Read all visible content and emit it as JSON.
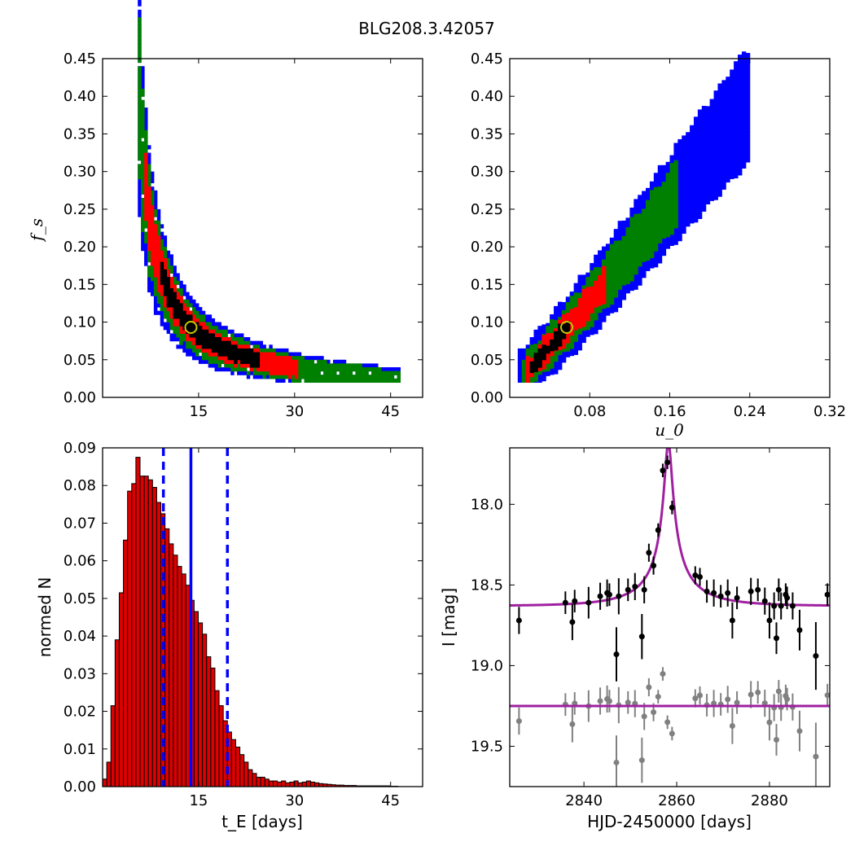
{
  "title": "BLG208.3.42057",
  "colors": {
    "blue": "#0000ff",
    "green": "#008000",
    "red": "#ff0000",
    "black": "#000000",
    "marker_yellow": "#c8c800",
    "model": "#a020a0",
    "grey": "#808080",
    "hist_bar": "#dd0000"
  },
  "chart_data": [
    {
      "id": "fs_vs_tE",
      "type": "heatmap",
      "ylabel": "f_s",
      "xlim": [
        0,
        50
      ],
      "ylim": [
        0,
        0.45
      ],
      "xticks": [
        "15",
        "30",
        "45"
      ],
      "xtick_values": [
        15,
        30,
        45
      ],
      "yticks": [
        "0.00",
        "0.05",
        "0.10",
        "0.15",
        "0.20",
        "0.25",
        "0.30",
        "0.35",
        "0.40",
        "0.45"
      ],
      "ytick_values": [
        0,
        0.05,
        0.1,
        0.15,
        0.2,
        0.25,
        0.3,
        0.35,
        0.4,
        0.45
      ],
      "ridge": {
        "x": [
          5.5,
          6,
          7,
          8,
          9,
          10,
          11,
          12,
          13,
          14,
          15,
          16,
          17,
          18,
          20,
          22,
          24,
          26,
          28,
          30,
          32,
          34,
          36,
          38,
          40,
          42,
          44,
          46
        ],
        "y": [
          0.4,
          0.32,
          0.24,
          0.195,
          0.165,
          0.142,
          0.124,
          0.11,
          0.099,
          0.09,
          0.083,
          0.077,
          0.072,
          0.068,
          0.061,
          0.055,
          0.05,
          0.046,
          0.042,
          0.039,
          0.036,
          0.034,
          0.032,
          0.03,
          0.029,
          0.027,
          0.026,
          0.025
        ]
      },
      "best_fit": {
        "x": 13.8,
        "y": 0.093
      }
    },
    {
      "id": "fs_vs_u0",
      "type": "heatmap",
      "xlabel": "u_0",
      "xlim": [
        0,
        0.32
      ],
      "ylim": [
        0,
        0.45
      ],
      "xticks": [
        "0.08",
        "0.16",
        "0.24",
        "0.32"
      ],
      "xtick_values": [
        0.08,
        0.16,
        0.24,
        0.32
      ],
      "yticks": [
        "0.00",
        "0.05",
        "0.10",
        "0.15",
        "0.20",
        "0.25",
        "0.30",
        "0.35",
        "0.40",
        "0.45"
      ],
      "ytick_values": [
        0,
        0.05,
        0.1,
        0.15,
        0.2,
        0.25,
        0.3,
        0.35,
        0.4,
        0.45
      ],
      "ridge": {
        "x": [
          0.01,
          0.03,
          0.06,
          0.09,
          0.12,
          0.15,
          0.18,
          0.21,
          0.235
        ],
        "y": [
          0.025,
          0.055,
          0.098,
          0.145,
          0.195,
          0.245,
          0.295,
          0.345,
          0.385
        ]
      },
      "best_fit": {
        "x": 0.057,
        "y": 0.093
      }
    },
    {
      "id": "tE_histogram",
      "type": "bar",
      "xlabel": "t_E [days]",
      "ylabel": "normed N",
      "xlim": [
        0,
        50
      ],
      "ylim": [
        0,
        0.09
      ],
      "xticks": [
        "15",
        "30",
        "45"
      ],
      "xtick_values": [
        15,
        30,
        45
      ],
      "yticks": [
        "0.00",
        "0.01",
        "0.02",
        "0.03",
        "0.04",
        "0.05",
        "0.06",
        "0.07",
        "0.08",
        "0.09"
      ],
      "ytick_values": [
        0,
        0.01,
        0.02,
        0.03,
        0.04,
        0.05,
        0.06,
        0.07,
        0.08,
        0.09
      ],
      "bin_start": 0,
      "bin_width": 0.65,
      "values": [
        0.002,
        0.0065,
        0.0215,
        0.039,
        0.0515,
        0.0655,
        0.0785,
        0.0805,
        0.0875,
        0.0825,
        0.0825,
        0.0815,
        0.0795,
        0.0755,
        0.0725,
        0.0685,
        0.0645,
        0.0615,
        0.0585,
        0.0565,
        0.0535,
        0.0495,
        0.0465,
        0.0435,
        0.0405,
        0.0345,
        0.0315,
        0.0255,
        0.0215,
        0.0175,
        0.0145,
        0.0125,
        0.0105,
        0.0085,
        0.0065,
        0.0045,
        0.0035,
        0.0025,
        0.0025,
        0.002,
        0.0015,
        0.0015,
        0.0012,
        0.0015,
        0.001,
        0.0012,
        0.0015,
        0.001,
        0.0012,
        0.0015,
        0.0012,
        0.001,
        0.0008,
        0.0007,
        0.0006,
        0.0005,
        0.0004,
        0.0004,
        0.0003,
        0.0003,
        0.0003,
        0.0002,
        0.0002,
        0.0002,
        0.0002,
        0.0002,
        0.0002,
        0.0002,
        0.0002,
        0.0001,
        0.0001
      ],
      "median": 13.8,
      "lower": 9.5,
      "upper": 19.5
    },
    {
      "id": "light_curve",
      "type": "scatter",
      "xlabel": "HJD-2450000 [days]",
      "ylabel": "I [mag]",
      "xlim": [
        2824,
        2893
      ],
      "ylim": [
        19.75,
        17.65
      ],
      "xticks": [
        "2840",
        "2860",
        "2880"
      ],
      "xtick_values": [
        2840,
        2860,
        2880
      ],
      "yticks": [
        "18.0",
        "18.5",
        "19.0",
        "19.5"
      ],
      "ytick_values": [
        18.0,
        18.5,
        19.0,
        19.5
      ],
      "model": {
        "t0": 2858.2,
        "u0": 0.057,
        "tE": 13.8,
        "fs": 0.093,
        "m_base": 18.63
      },
      "residual_offset": 19.25,
      "observed": [
        [
          2826.0,
          18.72,
          0.06
        ],
        [
          2836.0,
          18.61,
          0.05
        ],
        [
          2837.5,
          18.73,
          0.08
        ],
        [
          2838.0,
          18.6,
          0.05
        ],
        [
          2841.0,
          18.61,
          0.07
        ],
        [
          2843.5,
          18.57,
          0.06
        ],
        [
          2845.0,
          18.55,
          0.06
        ],
        [
          2845.5,
          18.56,
          0.05
        ],
        [
          2847.0,
          18.93,
          0.12
        ],
        [
          2847.5,
          18.57,
          0.08
        ],
        [
          2849.5,
          18.53,
          0.05
        ],
        [
          2851.0,
          18.51,
          0.06
        ],
        [
          2852.5,
          18.82,
          0.1
        ],
        [
          2853.0,
          18.53,
          0.06
        ],
        [
          2854.0,
          18.3,
          0.04
        ],
        [
          2855.0,
          18.38,
          0.04
        ],
        [
          2856.0,
          18.16,
          0.03
        ],
        [
          2857.0,
          17.79,
          0.03
        ],
        [
          2858.0,
          17.74,
          0.03
        ],
        [
          2859.0,
          18.02,
          0.03
        ],
        [
          2864.0,
          18.44,
          0.04
        ],
        [
          2865.0,
          18.45,
          0.04
        ],
        [
          2866.5,
          18.54,
          0.05
        ],
        [
          2868.0,
          18.55,
          0.06
        ],
        [
          2869.5,
          18.57,
          0.05
        ],
        [
          2871.0,
          18.55,
          0.06
        ],
        [
          2872.0,
          18.72,
          0.08
        ],
        [
          2873.0,
          18.58,
          0.05
        ],
        [
          2876.0,
          18.54,
          0.06
        ],
        [
          2877.5,
          18.53,
          0.05
        ],
        [
          2879.0,
          18.6,
          0.06
        ],
        [
          2880.0,
          18.72,
          0.08
        ],
        [
          2881.0,
          18.63,
          0.06
        ],
        [
          2881.5,
          18.83,
          0.07
        ],
        [
          2882.0,
          18.53,
          0.05
        ],
        [
          2882.5,
          18.63,
          0.06
        ],
        [
          2883.5,
          18.56,
          0.05
        ],
        [
          2883.8,
          18.58,
          0.05
        ],
        [
          2885.0,
          18.63,
          0.06
        ],
        [
          2886.5,
          18.78,
          0.09
        ],
        [
          2890.0,
          18.94,
          0.15
        ],
        [
          2892.5,
          18.56,
          0.05
        ]
      ]
    }
  ]
}
